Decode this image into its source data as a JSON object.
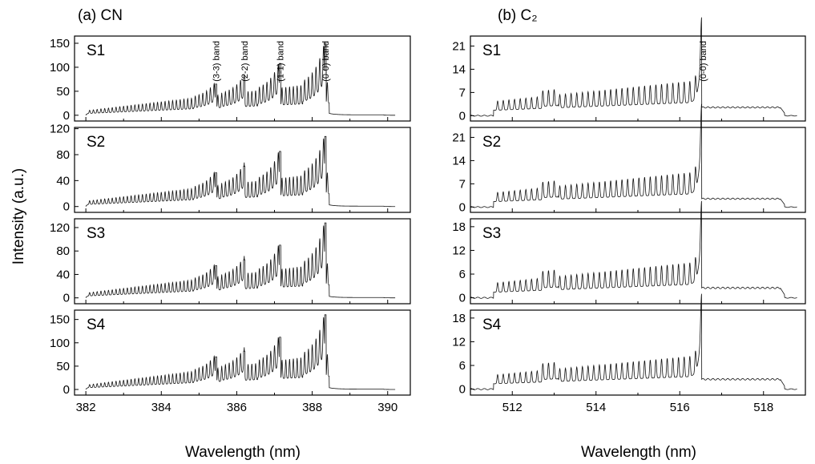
{
  "figure": {
    "ylabel": "Intensity (a.u.)"
  },
  "chart_data": [
    {
      "type": "line",
      "title": "(a) CN",
      "xlabel": "Wavelength (nm)",
      "xlim": [
        381.7,
        390.6
      ],
      "xticks": [
        382,
        384,
        386,
        388,
        390
      ],
      "band_labels": [
        {
          "text": "(3-3) band",
          "x": 385.45
        },
        {
          "text": "(2-2) band",
          "x": 386.2
        },
        {
          "text": "(1-1) band",
          "x": 387.15
        },
        {
          "text": "(0-0) band",
          "x": 388.35
        }
      ],
      "panels": [
        {
          "name": "S1",
          "ylim": [
            -12,
            165
          ],
          "yticks": [
            0,
            50,
            100,
            150
          ],
          "series": {
            "start": 382.0,
            "end": 390.2,
            "baseline": 0,
            "rise": 8,
            "ramp": 27,
            "tail": 3,
            "heads": [
              [
                385.45,
                65
              ],
              [
                386.2,
                78
              ],
              [
                387.15,
                108
              ],
              [
                388.35,
                150
              ]
            ]
          }
        },
        {
          "name": "S2",
          "ylim": [
            -9,
            122
          ],
          "yticks": [
            0,
            40,
            80,
            120
          ],
          "series": {
            "start": 382.0,
            "end": 390.2,
            "baseline": 0,
            "rise": 7,
            "ramp": 20,
            "tail": 2,
            "heads": [
              [
                385.45,
                52
              ],
              [
                386.2,
                62
              ],
              [
                387.15,
                85
              ],
              [
                388.35,
                108
              ]
            ]
          }
        },
        {
          "name": "S3",
          "ylim": [
            -10,
            135
          ],
          "yticks": [
            0,
            40,
            80,
            120
          ],
          "series": {
            "start": 382.0,
            "end": 390.2,
            "baseline": 0,
            "rise": 7,
            "ramp": 23,
            "tail": 2,
            "heads": [
              [
                385.45,
                55
              ],
              [
                386.2,
                65
              ],
              [
                387.15,
                90
              ],
              [
                388.35,
                128
              ]
            ]
          }
        },
        {
          "name": "S4",
          "ylim": [
            -12,
            170
          ],
          "yticks": [
            0,
            50,
            100,
            150
          ],
          "series": {
            "start": 382.0,
            "end": 390.2,
            "baseline": 0,
            "rise": 8,
            "ramp": 30,
            "tail": 3,
            "heads": [
              [
                385.45,
                70
              ],
              [
                386.2,
                82
              ],
              [
                387.15,
                112
              ],
              [
                388.35,
                160
              ]
            ]
          }
        }
      ]
    },
    {
      "type": "line",
      "title": "(b) C₂",
      "xlabel": "Wavelength (nm)",
      "xlim": [
        511.0,
        519.0
      ],
      "xticks": [
        512,
        514,
        516,
        518
      ],
      "band_labels": [
        {
          "text": "(0-0) band",
          "x": 516.55
        }
      ],
      "panels": [
        {
          "name": "S1",
          "ylim": [
            -1.6,
            24
          ],
          "yticks": [
            0,
            7,
            14,
            21
          ],
          "series": {
            "start": 511.0,
            "end": 518.8,
            "baseline": 0,
            "plateau": 3.0,
            "ramp": 4.5,
            "head_x": 516.5,
            "head": 21.5,
            "after": 2.5
          }
        },
        {
          "name": "S2",
          "ylim": [
            -1.6,
            24
          ],
          "yticks": [
            0,
            7,
            14,
            21
          ],
          "series": {
            "start": 511.0,
            "end": 518.8,
            "baseline": 0,
            "plateau": 3.0,
            "ramp": 4.5,
            "head_x": 516.5,
            "head": 22.5,
            "after": 2.5
          }
        },
        {
          "name": "S3",
          "ylim": [
            -1.5,
            20
          ],
          "yticks": [
            0,
            6,
            12,
            18
          ],
          "series": {
            "start": 511.0,
            "end": 518.8,
            "baseline": 0,
            "plateau": 2.6,
            "ramp": 3.8,
            "head_x": 516.5,
            "head": 17.8,
            "after": 2.5
          }
        },
        {
          "name": "S4",
          "ylim": [
            -1.5,
            20
          ],
          "yticks": [
            0,
            6,
            12,
            18
          ],
          "series": {
            "start": 511.0,
            "end": 518.8,
            "baseline": 0,
            "plateau": 2.5,
            "ramp": 3.5,
            "head_x": 516.5,
            "head": 17.5,
            "after": 2.5
          }
        }
      ]
    }
  ]
}
